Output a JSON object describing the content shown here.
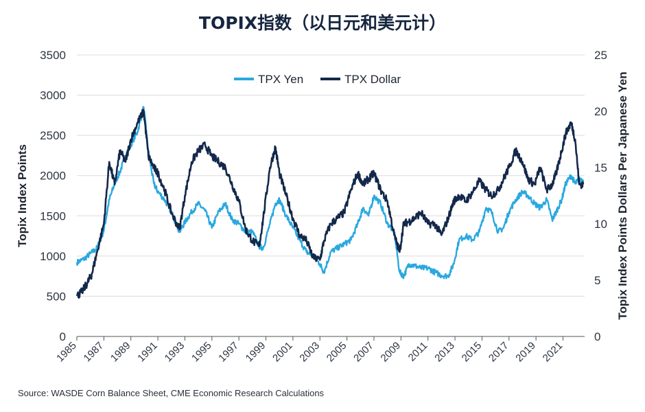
{
  "chart_data": {
    "type": "line",
    "title": "TOPIX指数（以日元和美元计）",
    "ylabel": "Topix Index Points",
    "y2label": "Topix Index Points Dollars Per Japanese Yen",
    "ylim": [
      0,
      3500
    ],
    "y2lim": [
      0,
      25
    ],
    "yticks": [
      "0",
      "500",
      "1000",
      "1500",
      "2000",
      "2500",
      "3000",
      "3500"
    ],
    "y2ticks": [
      "0",
      "5",
      "10",
      "15",
      "20",
      "25"
    ],
    "xlim": [
      1985,
      2022.6
    ],
    "xticks": [
      "1985",
      "1987",
      "1989",
      "1991",
      "1993",
      "1995",
      "1997",
      "1999",
      "2001",
      "2003",
      "2005",
      "2007",
      "2009",
      "2011",
      "2013",
      "2015",
      "2017",
      "2019",
      "2021"
    ],
    "legend": "top-center",
    "series": [
      {
        "name": "TPX Yen",
        "color": "#2aa8e0",
        "axis": "left",
        "x": [
          1985.0,
          1985.5,
          1986.0,
          1986.5,
          1987.0,
          1987.4,
          1987.8,
          1988.2,
          1988.6,
          1989.0,
          1989.5,
          1989.95,
          1990.3,
          1990.7,
          1991.0,
          1991.5,
          1992.0,
          1992.6,
          1993.0,
          1993.5,
          1994.0,
          1994.5,
          1995.0,
          1995.5,
          1996.0,
          1996.5,
          1997.0,
          1997.5,
          1998.0,
          1998.5,
          1998.8,
          1999.3,
          1999.7,
          2000.0,
          2000.5,
          2001.0,
          2001.5,
          2002.0,
          2002.5,
          2003.0,
          2003.3,
          2003.8,
          2004.3,
          2004.8,
          2005.3,
          2005.8,
          2006.2,
          2006.6,
          2007.0,
          2007.5,
          2008.0,
          2008.5,
          2008.9,
          2009.2,
          2009.6,
          2010.0,
          2010.5,
          2011.0,
          2011.5,
          2012.0,
          2012.5,
          2012.9,
          2013.3,
          2013.8,
          2014.3,
          2014.8,
          2015.3,
          2015.7,
          2016.2,
          2016.6,
          2017.0,
          2017.5,
          2018.0,
          2018.4,
          2018.9,
          2019.3,
          2019.8,
          2020.2,
          2020.5,
          2020.9,
          2021.2,
          2021.6,
          2021.9,
          2022.2,
          2022.5
        ],
        "values": [
          920,
          960,
          1030,
          1100,
          1320,
          1700,
          1900,
          2050,
          2250,
          2380,
          2550,
          2850,
          2300,
          1900,
          1800,
          1700,
          1550,
          1300,
          1420,
          1550,
          1650,
          1560,
          1350,
          1550,
          1650,
          1450,
          1400,
          1300,
          1300,
          1120,
          1100,
          1400,
          1650,
          1700,
          1500,
          1350,
          1200,
          1050,
          1000,
          900,
          800,
          1050,
          1100,
          1150,
          1200,
          1400,
          1600,
          1500,
          1750,
          1650,
          1400,
          1300,
          800,
          750,
          900,
          880,
          850,
          850,
          800,
          760,
          750,
          900,
          1200,
          1250,
          1200,
          1300,
          1600,
          1550,
          1300,
          1350,
          1550,
          1700,
          1800,
          1750,
          1650,
          1600,
          1700,
          1450,
          1550,
          1700,
          1900,
          2000,
          1900,
          1950,
          1950
        ]
      },
      {
        "name": "TPX Dollar",
        "color": "#13284a",
        "axis": "right",
        "x": [
          1985.0,
          1985.4,
          1985.8,
          1986.1,
          1986.5,
          1987.0,
          1987.4,
          1987.8,
          1988.2,
          1988.6,
          1989.0,
          1989.5,
          1989.95,
          1990.3,
          1990.7,
          1991.0,
          1991.5,
          1992.0,
          1992.6,
          1993.0,
          1993.5,
          1994.0,
          1994.5,
          1995.0,
          1995.5,
          1996.0,
          1996.5,
          1997.0,
          1997.5,
          1998.0,
          1998.5,
          1998.8,
          1999.3,
          1999.7,
          2000.0,
          2000.5,
          2001.0,
          2001.5,
          2002.0,
          2002.5,
          2003.0,
          2003.3,
          2003.8,
          2004.3,
          2004.8,
          2005.3,
          2005.8,
          2006.2,
          2006.6,
          2007.0,
          2007.5,
          2008.0,
          2008.5,
          2008.9,
          2009.2,
          2009.6,
          2010.0,
          2010.5,
          2011.0,
          2011.5,
          2012.0,
          2012.5,
          2012.9,
          2013.3,
          2013.8,
          2014.3,
          2014.8,
          2015.3,
          2015.7,
          2016.2,
          2016.6,
          2017.0,
          2017.5,
          2018.0,
          2018.4,
          2018.9,
          2019.3,
          2019.8,
          2020.2,
          2020.5,
          2020.9,
          2021.2,
          2021.6,
          2021.9,
          2022.2,
          2022.5
        ],
        "values": [
          3.6,
          4.0,
          4.8,
          5.5,
          7.5,
          10.0,
          15.5,
          13.5,
          16.5,
          15.5,
          17.5,
          19.0,
          20.0,
          16.0,
          15.0,
          14.5,
          13.0,
          11.0,
          9.5,
          12.5,
          15.5,
          16.5,
          17.0,
          16.0,
          15.5,
          15.0,
          13.5,
          12.0,
          9.5,
          8.5,
          8.0,
          10.5,
          15.0,
          16.8,
          14.5,
          12.5,
          10.5,
          9.0,
          8.5,
          7.0,
          6.8,
          8.5,
          10.0,
          10.5,
          11.0,
          13.0,
          14.5,
          13.5,
          14.0,
          14.5,
          13.0,
          12.0,
          9.0,
          7.5,
          10.0,
          10.2,
          10.5,
          11.0,
          10.0,
          10.0,
          9.0,
          10.5,
          12.0,
          12.5,
          12.0,
          12.8,
          13.8,
          13.0,
          12.5,
          13.0,
          14.0,
          15.0,
          16.5,
          15.5,
          14.0,
          13.5,
          15.0,
          13.0,
          13.5,
          14.5,
          16.5,
          18.0,
          19.0,
          17.5,
          13.5,
          13.5
        ]
      }
    ]
  },
  "source": "Source: WASDE Corn Balance Sheet, CME Economic Research Calculations"
}
